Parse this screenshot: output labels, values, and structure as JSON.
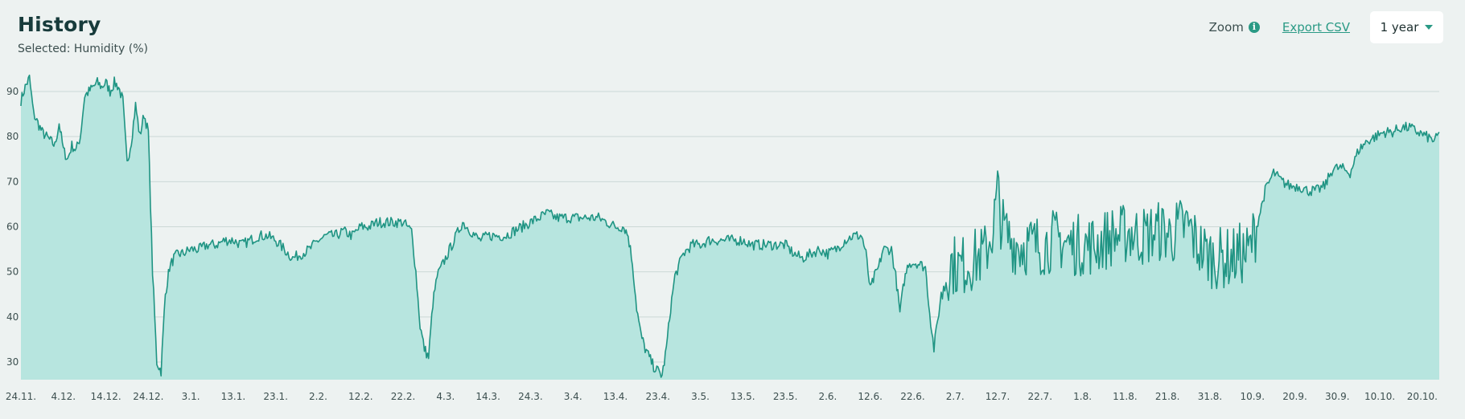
{
  "header": {
    "title": "History",
    "selected_text": "Selected: Humidity (%)"
  },
  "controls": {
    "zoom_label": "Zoom",
    "info_icon": "info-icon",
    "export_label": "Export CSV",
    "range_value": "1 year",
    "caret_icon": "caret-down-icon"
  },
  "colors": {
    "line": "#1f9483",
    "fill": "#b7e5df",
    "grid": "#cbd8d6",
    "accent": "#2a9a85",
    "background": "#edf2f1"
  },
  "chart_data": {
    "type": "area",
    "title": "",
    "xlabel": "",
    "ylabel": "",
    "ylim": [
      26,
      95
    ],
    "grid": true,
    "y_ticks": [
      30,
      40,
      50,
      60,
      70,
      80,
      90
    ],
    "x_tick_labels": [
      "24.11.",
      "4.12.",
      "14.12.",
      "24.12.",
      "3.1.",
      "13.1.",
      "23.1.",
      "2.2.",
      "12.2.",
      "22.2.",
      "4.3.",
      "14.3.",
      "24.3.",
      "3.4.",
      "13.4.",
      "23.4.",
      "3.5.",
      "13.5.",
      "23.5.",
      "2.6.",
      "12.6.",
      "22.6.",
      "2.7.",
      "12.7.",
      "22.7.",
      "1.8.",
      "11.8.",
      "21.8.",
      "31.8.",
      "10.9.",
      "20.9.",
      "30.9.",
      "10.10.",
      "20.10."
    ],
    "series": [
      {
        "points": [
          [
            "24.11.",
            88
          ],
          [
            "25.11.",
            91
          ],
          [
            "26.11.",
            93
          ],
          [
            "27.11.",
            85
          ],
          [
            "28.11.",
            83
          ],
          [
            "29.11.",
            81
          ],
          [
            "30.11.",
            80
          ],
          [
            "1.12.",
            79
          ],
          [
            "2.12.",
            78
          ],
          [
            "3.12.",
            83
          ],
          [
            "4.12.",
            77
          ],
          [
            "5.12.",
            75
          ],
          [
            "6.12.",
            78
          ],
          [
            "7.12.",
            77
          ],
          [
            "8.12.",
            80
          ],
          [
            "9.12.",
            89
          ],
          [
            "10.12.",
            90
          ],
          [
            "11.12.",
            91
          ],
          [
            "12.12.",
            92
          ],
          [
            "13.12.",
            91
          ],
          [
            "14.12.",
            92
          ],
          [
            "15.12.",
            90
          ],
          [
            "16.12.",
            92
          ],
          [
            "17.12.",
            91
          ],
          [
            "18.12.",
            88
          ],
          [
            "19.12.",
            74
          ],
          [
            "20.12.",
            79
          ],
          [
            "21.12.",
            87
          ],
          [
            "22.12.",
            80
          ],
          [
            "23.12.",
            85
          ],
          [
            "24.12.",
            81
          ],
          [
            "25.12.",
            50
          ],
          [
            "26.12.",
            30
          ],
          [
            "27.12.",
            28
          ],
          [
            "28.12.",
            45
          ],
          [
            "29.12.",
            51
          ],
          [
            "30.12.",
            53
          ],
          [
            "31.12.",
            54
          ],
          [
            "1.1.",
            54
          ],
          [
            "3.1.",
            55
          ],
          [
            "5.1.",
            55
          ],
          [
            "7.1.",
            56
          ],
          [
            "9.1.",
            56
          ],
          [
            "11.1.",
            57
          ],
          [
            "13.1.",
            57
          ],
          [
            "15.1.",
            56
          ],
          [
            "17.1.",
            57
          ],
          [
            "19.1.",
            58
          ],
          [
            "21.1.",
            58
          ],
          [
            "23.1.",
            57
          ],
          [
            "25.1.",
            55
          ],
          [
            "27.1.",
            53
          ],
          [
            "29.1.",
            54
          ],
          [
            "31.1.",
            55
          ],
          [
            "2.2.",
            57
          ],
          [
            "4.2.",
            58
          ],
          [
            "6.2.",
            58
          ],
          [
            "8.2.",
            59
          ],
          [
            "10.2.",
            58
          ],
          [
            "12.2.",
            60
          ],
          [
            "14.2.",
            60
          ],
          [
            "16.2.",
            61
          ],
          [
            "18.2.",
            61
          ],
          [
            "20.2.",
            61
          ],
          [
            "22.2.",
            61
          ],
          [
            "24.2.",
            59
          ],
          [
            "25.2.",
            50
          ],
          [
            "26.2.",
            38
          ],
          [
            "27.2.",
            33
          ],
          [
            "28.2.",
            31
          ],
          [
            "1.3.",
            43
          ],
          [
            "2.3.",
            49
          ],
          [
            "4.3.",
            53
          ],
          [
            "6.3.",
            57
          ],
          [
            "8.3.",
            61
          ],
          [
            "10.3.",
            59
          ],
          [
            "12.3.",
            57
          ],
          [
            "14.3.",
            58
          ],
          [
            "16.3.",
            58
          ],
          [
            "18.3.",
            58
          ],
          [
            "20.3.",
            59
          ],
          [
            "22.3.",
            60
          ],
          [
            "24.3.",
            61
          ],
          [
            "26.3.",
            62
          ],
          [
            "28.3.",
            63
          ],
          [
            "30.3.",
            62
          ],
          [
            "1.4.",
            62
          ],
          [
            "3.4.",
            62
          ],
          [
            "5.4.",
            62
          ],
          [
            "7.4.",
            62
          ],
          [
            "9.4.",
            62
          ],
          [
            "11.4.",
            61
          ],
          [
            "13.4.",
            60
          ],
          [
            "15.4.",
            60
          ],
          [
            "16.4.",
            58
          ],
          [
            "17.4.",
            52
          ],
          [
            "18.4.",
            42
          ],
          [
            "19.4.",
            36
          ],
          [
            "20.4.",
            33
          ],
          [
            "21.4.",
            31
          ],
          [
            "22.4.",
            29
          ],
          [
            "23.4.",
            28
          ],
          [
            "24.4.",
            27
          ],
          [
            "25.4.",
            33
          ],
          [
            "26.4.",
            42
          ],
          [
            "27.4.",
            49
          ],
          [
            "29.4.",
            54
          ],
          [
            "1.5.",
            56
          ],
          [
            "3.5.",
            56
          ],
          [
            "5.5.",
            57
          ],
          [
            "7.5.",
            57
          ],
          [
            "9.5.",
            57
          ],
          [
            "11.5.",
            57
          ],
          [
            "13.5.",
            57
          ],
          [
            "15.5.",
            56
          ],
          [
            "17.5.",
            56
          ],
          [
            "19.5.",
            56
          ],
          [
            "21.5.",
            56
          ],
          [
            "23.5.",
            56
          ],
          [
            "25.5.",
            54
          ],
          [
            "27.5.",
            53
          ],
          [
            "29.5.",
            54
          ],
          [
            "31.5.",
            55
          ],
          [
            "2.6.",
            54
          ],
          [
            "4.6.",
            55
          ],
          [
            "6.6.",
            57
          ],
          [
            "8.6.",
            58
          ],
          [
            "10.6.",
            58
          ],
          [
            "11.6.",
            54
          ],
          [
            "12.6.",
            46
          ],
          [
            "13.6.",
            49
          ],
          [
            "14.6.",
            51
          ],
          [
            "15.6.",
            55
          ],
          [
            "17.6.",
            55
          ],
          [
            "18.6.",
            49
          ],
          [
            "19.6.",
            41
          ],
          [
            "20.6.",
            48
          ],
          [
            "21.6.",
            52
          ],
          [
            "23.6.",
            52
          ],
          [
            "25.6.",
            51
          ],
          [
            "26.6.",
            41
          ],
          [
            "27.6.",
            33
          ],
          [
            "29.6.",
            47
          ],
          [
            "1.7.",
            52
          ],
          [
            "3.7.",
            51
          ],
          [
            "5.7.",
            52
          ],
          [
            "7.7.",
            53
          ],
          [
            "9.7.",
            54
          ],
          [
            "11.7.",
            60
          ],
          [
            "12.7.",
            68
          ],
          [
            "13.7.",
            60
          ],
          [
            "15.7.",
            57
          ],
          [
            "17.7.",
            56
          ],
          [
            "19.7.",
            56
          ],
          [
            "21.7.",
            56
          ],
          [
            "23.7.",
            56
          ],
          [
            "25.7.",
            57
          ],
          [
            "27.7.",
            57
          ],
          [
            "29.7.",
            56
          ],
          [
            "31.7.",
            56
          ],
          [
            "2.8.",
            56
          ],
          [
            "4.8.",
            56
          ],
          [
            "6.8.",
            57
          ],
          [
            "8.8.",
            58
          ],
          [
            "10.8.",
            58
          ],
          [
            "12.8.",
            59
          ],
          [
            "14.8.",
            58
          ],
          [
            "16.8.",
            58
          ],
          [
            "18.8.",
            59
          ],
          [
            "20.8.",
            59
          ],
          [
            "22.8.",
            58
          ],
          [
            "24.8.",
            60
          ],
          [
            "26.8.",
            60
          ],
          [
            "28.8.",
            56
          ],
          [
            "30.8.",
            54
          ],
          [
            "1.9.",
            53
          ],
          [
            "3.9.",
            53
          ],
          [
            "5.9.",
            53
          ],
          [
            "7.9.",
            54
          ],
          [
            "9.9.",
            54
          ],
          [
            "11.9.",
            60
          ],
          [
            "13.9.",
            68
          ],
          [
            "15.9.",
            72
          ],
          [
            "17.9.",
            70
          ],
          [
            "19.9.",
            69
          ],
          [
            "21.9.",
            69
          ],
          [
            "23.9.",
            68
          ],
          [
            "25.9.",
            68
          ],
          [
            "27.9.",
            69
          ],
          [
            "29.9.",
            73
          ],
          [
            "1.10.",
            73
          ],
          [
            "3.10.",
            72
          ],
          [
            "5.10.",
            77
          ],
          [
            "7.10.",
            79
          ],
          [
            "9.10.",
            80
          ],
          [
            "11.10.",
            81
          ],
          [
            "13.10.",
            81
          ],
          [
            "15.10.",
            82
          ],
          [
            "17.10.",
            82
          ],
          [
            "19.10.",
            81
          ],
          [
            "21.10.",
            80
          ],
          [
            "23.10.",
            79
          ],
          [
            "24.10.",
            81
          ]
        ]
      }
    ]
  }
}
